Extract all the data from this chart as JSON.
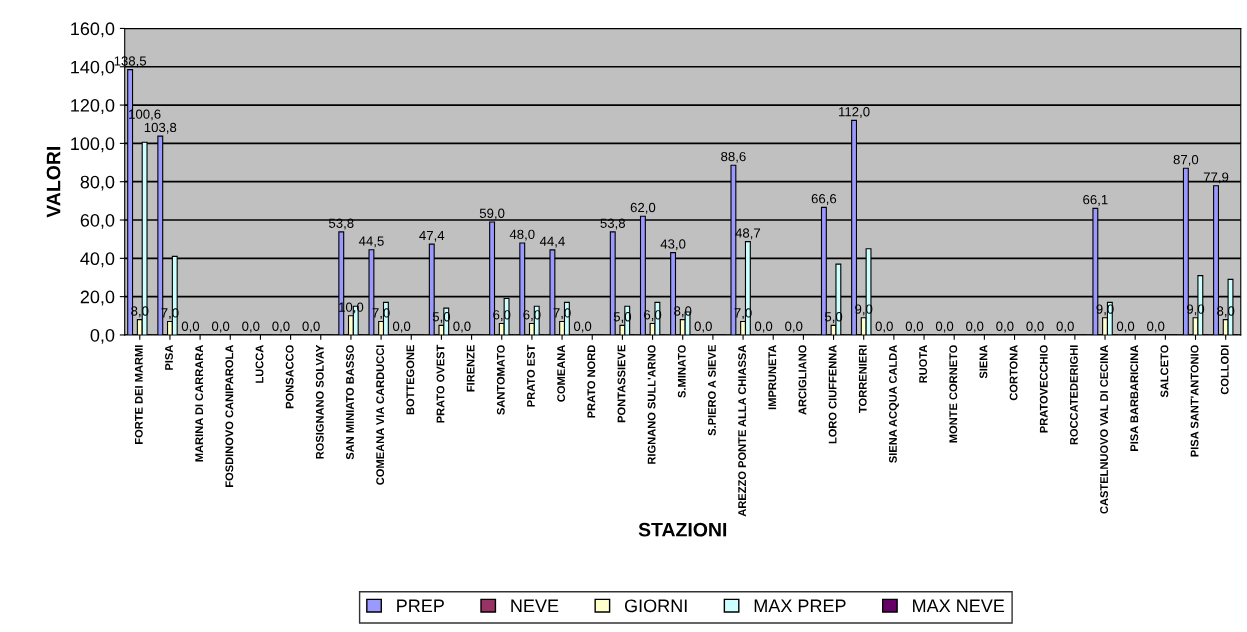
{
  "chart_data": {
    "type": "bar",
    "xlabel": "STAZIONI",
    "ylabel": "VALORI",
    "categories": [
      "FORTE DEI MARMI",
      "PISA",
      "MARINA DI CARRARA",
      "FOSDINOVO CANIPAROLA",
      "LUCCA",
      "PONSACCO",
      "ROSIGNANO SOLVAY",
      "SAN MINIATO BASSO",
      "COMEANA VIA CARDUCCI",
      "BOTTEGONE",
      "PRATO OVEST",
      "FIRENZE",
      "SANTOMATO",
      "PRATO EST",
      "COMEANA",
      "PRATO NORD",
      "PONTASSIEVE",
      "RIGNANO SULL'ARNO",
      "S.MINATO",
      "S.PIERO A SIEVE",
      "AREZZO PONTE ALLA CHIASSA",
      "IMPRUNETA",
      "ARCIGLIANO",
      "LORO CIUFFENNA",
      "TORRENIERI",
      "SIENA ACQUA CALDA",
      "RUOTA",
      "MONTE CORNETO",
      "SIENA",
      "CORTONA",
      "PRATOVECCHIO",
      "ROCCATEDERIGHI",
      "CASTELNUOVO VAL DI CECINA",
      "PISA BARBARICINA",
      "SALCETO",
      "PISA SANT'ANTONIO",
      "COLLODI"
    ],
    "series": [
      {
        "name": "PREP",
        "color": "#9999ff",
        "values": [
          138.5,
          103.8,
          0,
          0,
          0,
          0,
          0,
          53.8,
          44.5,
          0,
          47.4,
          0,
          59.0,
          48.0,
          44.4,
          0,
          53.8,
          62.0,
          43.0,
          0,
          88.6,
          0,
          0,
          66.6,
          112.0,
          0,
          0,
          0,
          0,
          0,
          0,
          0,
          66.1,
          0,
          0,
          87.0,
          77.9
        ],
        "value_labels": [
          "138,5",
          "103,8",
          "0,0",
          "0,0",
          "0,0",
          "0,0",
          "0,0",
          "53,8",
          "44,5",
          "0,0",
          "47,4",
          "0,0",
          "59,0",
          "48,0",
          "44,4",
          "0,0",
          "53,8",
          "62,0",
          "43,0",
          "0,0",
          "88,6",
          "0,0",
          "0,0",
          "66,6",
          "112,0",
          "0,0",
          "0,0",
          "0,0",
          "0,0",
          "0,0",
          "0,0",
          "0,0",
          "66,1",
          "0,0",
          "0,0",
          "87,0",
          "77,9"
        ]
      },
      {
        "name": "NEVE",
        "color": "#993366",
        "values": [
          0,
          0,
          0,
          0,
          0,
          0,
          0,
          0,
          0,
          0,
          0,
          0,
          0,
          0,
          0,
          0,
          0,
          0,
          0,
          0,
          0,
          0,
          0,
          0,
          0,
          0,
          0,
          0,
          0,
          0,
          0,
          0,
          0,
          0,
          0,
          0,
          0
        ]
      },
      {
        "name": "GIORNI",
        "color": "#ffffcc",
        "values": [
          8,
          7,
          0,
          0,
          0,
          0,
          0,
          10,
          7,
          0,
          5,
          0,
          6,
          6,
          7,
          0,
          5,
          6,
          8,
          0,
          7,
          0,
          0,
          5,
          9,
          0,
          0,
          0,
          0,
          0,
          0,
          0,
          9,
          0,
          0,
          9,
          8
        ],
        "value_labels": [
          "8,0",
          "7,0",
          null,
          null,
          null,
          null,
          null,
          "10,0",
          "7,0",
          null,
          "5,0",
          null,
          "6,0",
          "6,0",
          "7,0",
          null,
          "5,0",
          "6,0",
          "8,0",
          null,
          "7,0",
          null,
          null,
          "5,0",
          "9,0",
          null,
          null,
          null,
          null,
          null,
          null,
          null,
          "9,0",
          null,
          null,
          "9,0",
          "8,0"
        ]
      },
      {
        "name": "MAX PREP",
        "color": "#ccffff",
        "values": [
          100.6,
          41,
          0,
          0,
          0,
          0,
          0,
          15,
          17,
          0,
          14,
          0,
          19,
          15,
          17,
          0,
          15,
          17,
          12,
          0,
          48.7,
          0,
          0,
          37,
          45,
          0,
          0,
          0,
          0,
          0,
          0,
          0,
          17,
          0,
          0,
          31,
          29
        ],
        "value_labels": [
          "100,6",
          null,
          null,
          null,
          null,
          null,
          null,
          null,
          null,
          null,
          null,
          null,
          null,
          null,
          null,
          null,
          null,
          null,
          null,
          null,
          "48,7",
          null,
          null,
          null,
          null,
          null,
          null,
          null,
          null,
          null,
          null,
          null,
          null,
          null,
          null,
          null,
          null
        ]
      },
      {
        "name": "MAX NEVE",
        "color": "#660066",
        "values": [
          0,
          0,
          0,
          0,
          0,
          0,
          0,
          0,
          0,
          0,
          0,
          0,
          0,
          0,
          0,
          0,
          0,
          0,
          0,
          0,
          0,
          0,
          0,
          0,
          0,
          0,
          0,
          0,
          0,
          0,
          0,
          0,
          0,
          0,
          0,
          0,
          0
        ]
      }
    ],
    "ylim": [
      0,
      160
    ],
    "yticks": [
      {
        "value": 0,
        "label": "0,0"
      },
      {
        "value": 20,
        "label": "20,0"
      },
      {
        "value": 40,
        "label": "40,0"
      },
      {
        "value": 60,
        "label": "60,0"
      },
      {
        "value": 80,
        "label": "80,0"
      },
      {
        "value": 100,
        "label": "100,0"
      },
      {
        "value": 120,
        "label": "120,0"
      },
      {
        "value": 140,
        "label": "140,0"
      },
      {
        "value": 160,
        "label": "160,0"
      }
    ],
    "grid": "y",
    "legend": "bottom"
  }
}
